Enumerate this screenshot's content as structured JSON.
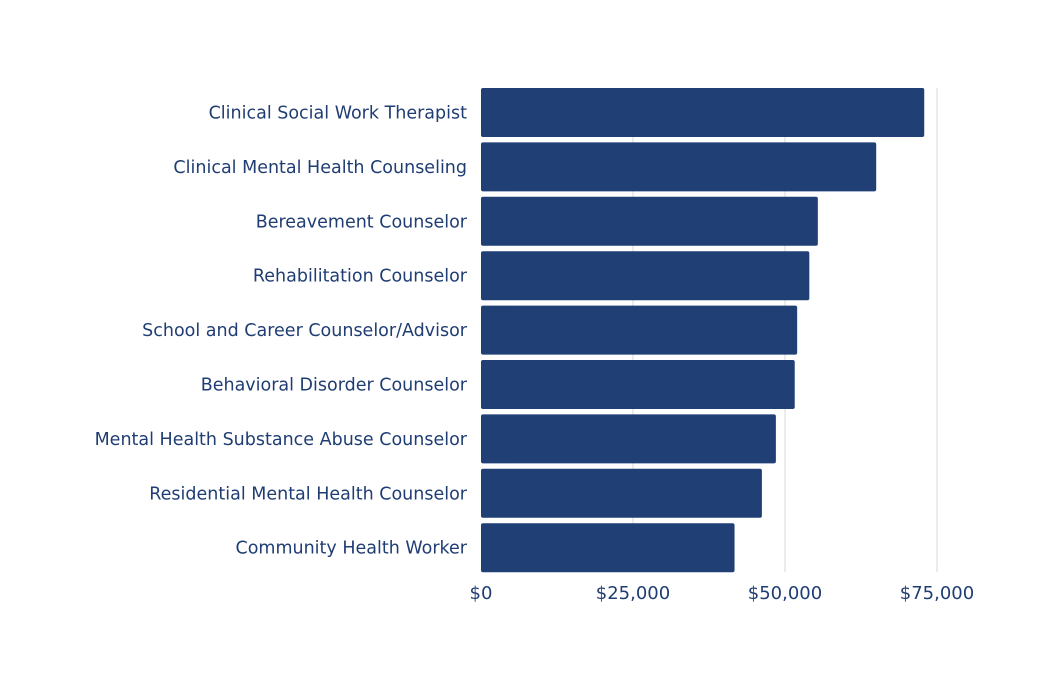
{
  "chart_data": {
    "type": "bar",
    "orientation": "horizontal",
    "categories": [
      "Clinical Social Work Therapist",
      "Clinical Mental Health Counseling",
      "Bereavement Counselor",
      "Rehabilitation Counselor",
      "School and Career Counselor/Advisor",
      "Behavioral Disorder Counselor",
      "Mental Health Substance Abuse Counselor",
      "Residential Mental Health Counselor",
      "Community Health Worker"
    ],
    "values": [
      72900,
      65000,
      55400,
      54000,
      52000,
      51600,
      48500,
      46200,
      41700
    ],
    "x_ticks": [
      0,
      25000,
      50000,
      75000
    ],
    "x_tick_labels": [
      "$0",
      "$25,000",
      "$50,000",
      "$75,000"
    ],
    "xlim": [
      0,
      75000
    ],
    "grid": true,
    "title": "",
    "xlabel": "",
    "ylabel": "",
    "colors": {
      "bar": "#1f3f75",
      "text": "#1f3d73",
      "grid": "#d9d9d9"
    }
  }
}
